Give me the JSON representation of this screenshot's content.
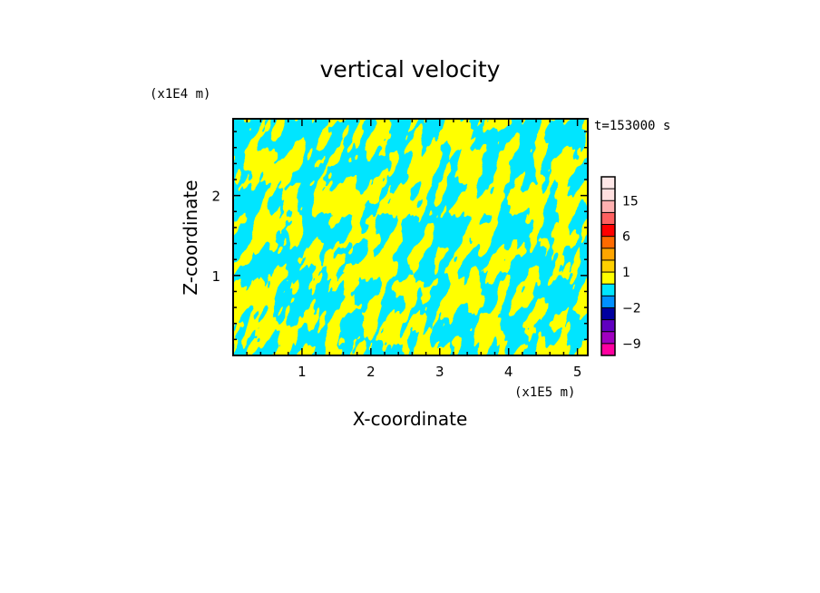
{
  "chart_data": {
    "type": "heatmap",
    "title": "vertical velocity",
    "xlabel": "X-coordinate",
    "ylabel": "Z-coordinate",
    "x_unit": "(x1E5 m)",
    "y_unit": "(x1E4 m)",
    "time_label": "t=153000 s",
    "xlim": [
      0,
      5.15
    ],
    "ylim": [
      0,
      2.96
    ],
    "x_ticks": [
      1,
      2,
      3,
      4,
      5
    ],
    "y_ticks": [
      1,
      2
    ],
    "pattern": "alternating updraft/downdraft streaks; dominant field values in the -2..1 (cyan) and 1..6 (yellow) bins",
    "dominant_colors": {
      "positive": "#ffff00",
      "negative": "#00e5ff"
    },
    "colorbar": {
      "levels": [
        -12,
        -9,
        -6,
        -4,
        -2,
        -1,
        0,
        1,
        2,
        4,
        6,
        9,
        12,
        15,
        18,
        22
      ],
      "labels": [
        {
          "value": 15,
          "text": "15"
        },
        {
          "value": 6,
          "text": "6"
        },
        {
          "value": 1,
          "text": "1"
        },
        {
          "value": -2,
          "text": "−2"
        },
        {
          "value": -9,
          "text": "−9"
        }
      ],
      "colors": [
        {
          "from": 18,
          "to": 22,
          "color": "#ffe8e8"
        },
        {
          "from": 15,
          "to": 18,
          "color": "#ffe0e0"
        },
        {
          "from": 12,
          "to": 15,
          "color": "#ffb0b0"
        },
        {
          "from": 9,
          "to": 12,
          "color": "#ff6060"
        },
        {
          "from": 6,
          "to": 9,
          "color": "#ff0000"
        },
        {
          "from": 4,
          "to": 6,
          "color": "#ff6a00"
        },
        {
          "from": 2,
          "to": 4,
          "color": "#ffa500"
        },
        {
          "from": 1,
          "to": 2,
          "color": "#ffd000"
        },
        {
          "from": 0,
          "to": 1,
          "color": "#ffff00"
        },
        {
          "from": -1,
          "to": 0,
          "color": "#00e5ff"
        },
        {
          "from": -2,
          "to": -1,
          "color": "#0090ff"
        },
        {
          "from": -4,
          "to": -2,
          "color": "#0000a0"
        },
        {
          "from": -6,
          "to": -4,
          "color": "#6000c0"
        },
        {
          "from": -9,
          "to": -6,
          "color": "#a000c0"
        },
        {
          "from": -12,
          "to": -9,
          "color": "#ff00a0"
        }
      ]
    }
  }
}
